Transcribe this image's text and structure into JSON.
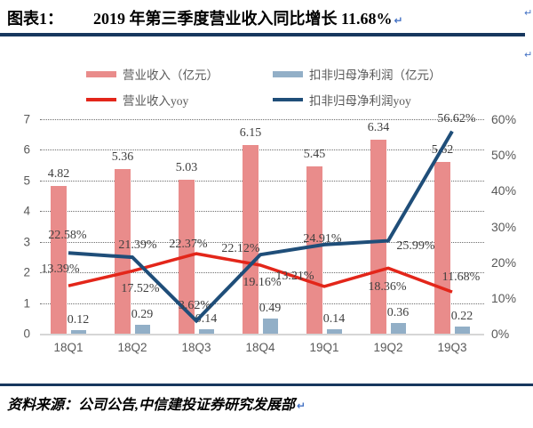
{
  "header": {
    "figure_label": "图表1：",
    "title": "2019 年第三季度营业收入同比增长 11.68%",
    "return_mark": "↵"
  },
  "footer": {
    "source_text": "资料来源：公司公告,中信建投证券研究发展部",
    "return_mark": "↵"
  },
  "colors": {
    "rule": "#17375E",
    "axis_text": "#595959",
    "data_label_text": "#3F3F3F",
    "gridline": "#6E6E6E",
    "baseline": "#D6D6D6",
    "return_mark": "#4472C4",
    "background": "#FFFFFF"
  },
  "chart_data": {
    "type": "bar",
    "subtype": "bar-line-combo",
    "title": "2019 年第三季度营业收入同比增长 11.68%",
    "categories": [
      "18Q1",
      "18Q2",
      "18Q3",
      "18Q4",
      "19Q1",
      "19Q2",
      "19Q3"
    ],
    "left_axis": {
      "min": 0,
      "max": 7,
      "ticks": [
        0,
        1,
        2,
        3,
        4,
        5,
        6,
        7
      ]
    },
    "right_axis": {
      "min": 0,
      "max": 60,
      "tick_labels": [
        "0%",
        "10%",
        "20%",
        "30%",
        "40%",
        "50%",
        "60%"
      ],
      "tick_values": [
        0,
        10,
        20,
        30,
        40,
        50,
        60
      ]
    },
    "grid": "horizontal-dotted",
    "legend_position": "top",
    "series": [
      {
        "name": "营业收入（亿元）",
        "type": "bar",
        "axis": "left",
        "color": "#E98C8B",
        "values": [
          4.82,
          5.36,
          5.03,
          6.15,
          5.45,
          6.34,
          5.62
        ],
        "labels": [
          "4.82",
          "5.36",
          "5.03",
          "6.15",
          "5.45",
          "6.34",
          "5.62"
        ]
      },
      {
        "name": "扣非归母净利润（亿元）",
        "type": "bar",
        "axis": "left",
        "color": "#92AFC7",
        "values": [
          0.12,
          0.29,
          0.14,
          0.49,
          0.14,
          0.36,
          0.22
        ],
        "labels": [
          "0.12",
          "0.29",
          "0.14",
          "0.49",
          "0.14",
          "0.36",
          "0.22"
        ]
      },
      {
        "name": "营业收入yoy",
        "type": "line",
        "axis": "right",
        "color": "#E3261A",
        "values": [
          13.39,
          17.52,
          22.37,
          19.16,
          13.21,
          18.36,
          11.68
        ],
        "labels": [
          "13.39%",
          "17.52%",
          "22.37%",
          "19.16%",
          "13.21%",
          "18.36%",
          "11.68%"
        ],
        "label_offsets": [
          [
            -9,
            -18
          ],
          [
            9,
            20
          ],
          [
            -9,
            -10
          ],
          [
            2,
            20
          ],
          [
            -33,
            -11
          ],
          [
            -1,
            22
          ],
          [
            10,
            -16
          ]
        ]
      },
      {
        "name": "扣非归母净利润yoy",
        "type": "line",
        "axis": "right",
        "color": "#1F4E79",
        "values": [
          22.58,
          21.39,
          3.62,
          22.12,
          24.91,
          25.99,
          56.62
        ],
        "labels": [
          "22.58%",
          "21.39%",
          "3.62%",
          "22.12%",
          "24.91%",
          "25.99%",
          "56.62%"
        ],
        "label_offsets": [
          [
            -1,
            -19
          ],
          [
            6,
            -13
          ],
          [
            -2,
            -16
          ],
          [
            -22,
            -6
          ],
          [
            -2,
            -6
          ],
          [
            31,
            6
          ],
          [
            5,
            -14
          ]
        ]
      }
    ]
  }
}
